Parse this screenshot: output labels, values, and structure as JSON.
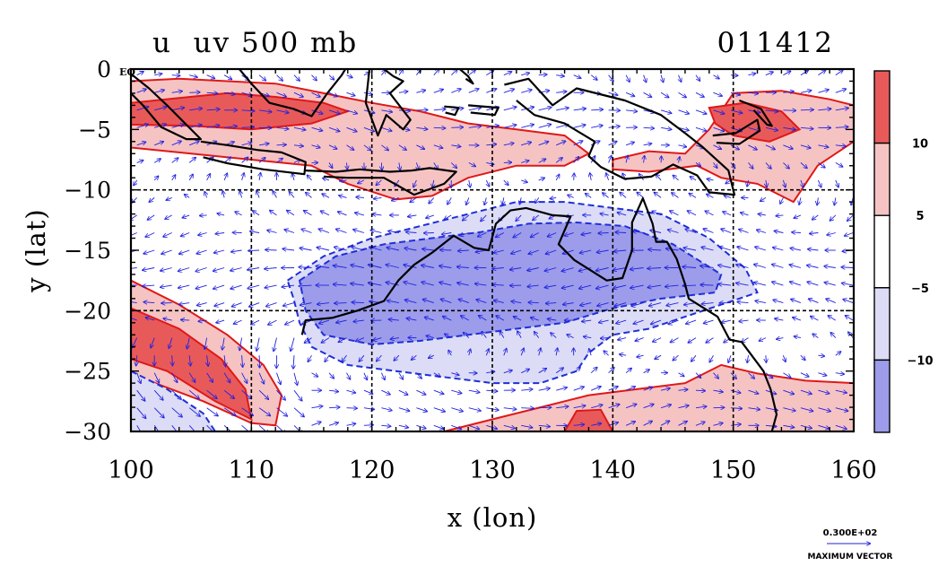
{
  "chart_data": {
    "type": "heatmap",
    "title_left": "u  uv 500 mb",
    "title_right": "011412",
    "xlabel": "x (lon)",
    "ylabel": "y (lat)",
    "xlim": [
      100,
      160
    ],
    "ylim": [
      -30,
      0
    ],
    "x_ticks": [
      100,
      110,
      120,
      130,
      140,
      150,
      160
    ],
    "y_ticks": [
      0,
      -5,
      -10,
      -15,
      -20,
      -25,
      -30
    ],
    "y_tick_labels": [
      "0",
      "−5",
      "−10",
      "−15",
      "−20",
      "−25",
      "−30"
    ],
    "eq_label": "EQ",
    "grid_lon": [
      110,
      120,
      130,
      140,
      150
    ],
    "grid_lat": [
      -10,
      -20
    ],
    "colorbar": {
      "levels": [
        -10,
        -5,
        5,
        10
      ],
      "labels": [
        "10",
        "5",
        "−5",
        "−10"
      ],
      "colors": [
        "#e85a5a",
        "#f6c3c3",
        "#ffffff",
        "#dcdcf6",
        "#9c9cea"
      ]
    },
    "regions": [
      {
        "name": "westerly-north-west",
        "level": 5,
        "lonlat": [
          [
            100,
            -1
          ],
          [
            104,
            -0.8
          ],
          [
            108,
            -1
          ],
          [
            112,
            -1.2
          ],
          [
            116,
            -2
          ],
          [
            120,
            -2.8
          ],
          [
            124,
            -3.5
          ],
          [
            128,
            -4.5
          ],
          [
            132,
            -5
          ],
          [
            136,
            -5.5
          ],
          [
            138,
            -7
          ],
          [
            136,
            -8
          ],
          [
            132,
            -8
          ],
          [
            128,
            -9
          ],
          [
            125,
            -10.5
          ],
          [
            122,
            -10.8
          ],
          [
            118,
            -9.5
          ],
          [
            115,
            -8
          ],
          [
            110,
            -7.5
          ],
          [
            105,
            -7
          ],
          [
            100,
            -6.5
          ]
        ]
      },
      {
        "name": "westerly-north-west-core",
        "level": 10,
        "lonlat": [
          [
            100,
            -2.8
          ],
          [
            104,
            -2.4
          ],
          [
            108,
            -2
          ],
          [
            112,
            -2.3
          ],
          [
            116,
            -2.8
          ],
          [
            118,
            -3.5
          ],
          [
            115,
            -4.5
          ],
          [
            110,
            -5
          ],
          [
            105,
            -4.7
          ],
          [
            100,
            -4.6
          ]
        ]
      },
      {
        "name": "westerly-north-east",
        "level": 5,
        "lonlat": [
          [
            140,
            -7.5
          ],
          [
            143,
            -6.8
          ],
          [
            146,
            -7
          ],
          [
            148,
            -5
          ],
          [
            150,
            -2
          ],
          [
            154,
            -1.8
          ],
          [
            158,
            -2.5
          ],
          [
            160,
            -3
          ],
          [
            160,
            -6
          ],
          [
            157,
            -8
          ],
          [
            155,
            -11
          ],
          [
            152,
            -9.5
          ],
          [
            149,
            -9
          ],
          [
            147,
            -8
          ],
          [
            143,
            -8.5
          ],
          [
            140,
            -8.3
          ]
        ]
      },
      {
        "name": "westerly-north-east-core",
        "level": 10,
        "lonlat": [
          [
            148,
            -3.2
          ],
          [
            151,
            -2.8
          ],
          [
            154,
            -3.5
          ],
          [
            155.5,
            -5
          ],
          [
            153,
            -6
          ],
          [
            150,
            -5.5
          ],
          [
            148.5,
            -4.5
          ]
        ]
      },
      {
        "name": "westerly-south-west",
        "level": 5,
        "lonlat": [
          [
            100,
            -17.5
          ],
          [
            104,
            -19.5
          ],
          [
            108,
            -22
          ],
          [
            111,
            -24.5
          ],
          [
            112.5,
            -27
          ],
          [
            112,
            -29.5
          ],
          [
            110,
            -29.3
          ],
          [
            106,
            -27.5
          ],
          [
            102,
            -26
          ],
          [
            100,
            -25.5
          ]
        ]
      },
      {
        "name": "westerly-south-west-core",
        "level": 10,
        "lonlat": [
          [
            100,
            -19.8
          ],
          [
            104,
            -21.5
          ],
          [
            107.5,
            -24
          ],
          [
            109.5,
            -26.5
          ],
          [
            110,
            -29
          ],
          [
            107,
            -27.5
          ],
          [
            103,
            -25
          ],
          [
            100,
            -24
          ]
        ]
      },
      {
        "name": "westerly-south",
        "level": 5,
        "lonlat": [
          [
            126,
            -30
          ],
          [
            130,
            -29
          ],
          [
            134,
            -28
          ],
          [
            138,
            -27
          ],
          [
            142,
            -26.5
          ],
          [
            146,
            -26
          ],
          [
            149,
            -24.5
          ],
          [
            152,
            -25.2
          ],
          [
            156,
            -25.8
          ],
          [
            160,
            -26
          ],
          [
            160,
            -30
          ]
        ]
      },
      {
        "name": "westerly-south-core",
        "level": 10,
        "lonlat": [
          [
            136,
            -30
          ],
          [
            137,
            -28.3
          ],
          [
            139,
            -28.2
          ],
          [
            140,
            -30
          ]
        ]
      },
      {
        "name": "easterly-central",
        "level": -5,
        "lonlat": [
          [
            113,
            -17.5
          ],
          [
            116,
            -15.5
          ],
          [
            120,
            -14
          ],
          [
            124,
            -13
          ],
          [
            128,
            -12
          ],
          [
            132,
            -11
          ],
          [
            136,
            -11
          ],
          [
            140,
            -11.5
          ],
          [
            144,
            -12
          ],
          [
            148,
            -14
          ],
          [
            151,
            -16.5
          ],
          [
            152,
            -18.5
          ],
          [
            149,
            -19.5
          ],
          [
            146,
            -20.5
          ],
          [
            143,
            -21.5
          ],
          [
            140,
            -22
          ],
          [
            138,
            -23.5
          ],
          [
            137,
            -25
          ],
          [
            134,
            -26
          ],
          [
            130,
            -26
          ],
          [
            126,
            -25.5
          ],
          [
            122,
            -25
          ],
          [
            118,
            -24.5
          ],
          [
            115,
            -23
          ],
          [
            114,
            -21
          ],
          [
            113.5,
            -19
          ]
        ]
      },
      {
        "name": "easterly-central-core",
        "level": -10,
        "lonlat": [
          [
            114,
            -17.5
          ],
          [
            117,
            -15.5
          ],
          [
            121,
            -14.5
          ],
          [
            125,
            -14
          ],
          [
            129,
            -13.5
          ],
          [
            133,
            -12.8
          ],
          [
            137,
            -12.7
          ],
          [
            141,
            -13
          ],
          [
            145,
            -14.5
          ],
          [
            149,
            -17
          ],
          [
            148.5,
            -18.5
          ],
          [
            144,
            -19
          ],
          [
            140,
            -19.8
          ],
          [
            136,
            -21
          ],
          [
            132,
            -21.5
          ],
          [
            128,
            -22
          ],
          [
            124,
            -22.5
          ],
          [
            120,
            -22.8
          ],
          [
            116,
            -22
          ],
          [
            114.5,
            -20
          ]
        ]
      },
      {
        "name": "easterly-south-west",
        "level": -5,
        "lonlat": [
          [
            100,
            -25
          ],
          [
            103,
            -26.5
          ],
          [
            106,
            -28.5
          ],
          [
            107,
            -30
          ],
          [
            100,
            -30
          ]
        ]
      }
    ],
    "coastlines": [
      {
        "name": "australia",
        "lonlat": [
          [
            114.2,
            -22
          ],
          [
            114.5,
            -20.8
          ],
          [
            116.7,
            -20.6
          ],
          [
            118.8,
            -20
          ],
          [
            121,
            -19.2
          ],
          [
            122.2,
            -17.5
          ],
          [
            123.5,
            -16.2
          ],
          [
            125,
            -15.2
          ],
          [
            126.8,
            -13.8
          ],
          [
            128.5,
            -14.8
          ],
          [
            129.7,
            -15
          ],
          [
            130.3,
            -12.8
          ],
          [
            131.5,
            -11.7
          ],
          [
            132.8,
            -11.5
          ],
          [
            135,
            -12.1
          ],
          [
            136.5,
            -12.2
          ],
          [
            135.5,
            -14.5
          ],
          [
            136.8,
            -15.8
          ],
          [
            139.5,
            -17.5
          ],
          [
            140.8,
            -17.3
          ],
          [
            141.6,
            -15
          ],
          [
            141.6,
            -12.7
          ],
          [
            142.5,
            -10.7
          ],
          [
            143.3,
            -12.8
          ],
          [
            143.6,
            -14.3
          ],
          [
            144.5,
            -14.3
          ],
          [
            145.3,
            -15.7
          ],
          [
            146,
            -17.8
          ],
          [
            146.3,
            -19
          ],
          [
            148.7,
            -20.5
          ],
          [
            149.7,
            -22.4
          ],
          [
            150.7,
            -22.6
          ],
          [
            152.5,
            -25
          ],
          [
            153.1,
            -26.5
          ],
          [
            153.6,
            -28.6
          ],
          [
            153.2,
            -30
          ]
        ]
      },
      {
        "name": "new-guinea",
        "lonlat": [
          [
            131,
            -1.3
          ],
          [
            133,
            -0.8
          ],
          [
            135,
            -3
          ],
          [
            137,
            -1.6
          ],
          [
            141,
            -2.6
          ],
          [
            144,
            -3.8
          ],
          [
            146,
            -5.3
          ],
          [
            147.4,
            -6.4
          ],
          [
            149.6,
            -8.4
          ],
          [
            150.1,
            -10.4
          ],
          [
            148,
            -10.2
          ],
          [
            147,
            -8.8
          ],
          [
            145,
            -7.9
          ],
          [
            143.2,
            -8.9
          ],
          [
            141,
            -9.1
          ],
          [
            139,
            -8.1
          ],
          [
            138,
            -7.2
          ],
          [
            138.5,
            -6
          ],
          [
            136,
            -4.5
          ],
          [
            133.5,
            -3.8
          ],
          [
            132,
            -2.6
          ]
        ]
      },
      {
        "name": "sumatra",
        "lonlat": [
          [
            100,
            -0.4
          ],
          [
            101.5,
            -1.6
          ],
          [
            103,
            -3
          ],
          [
            104.5,
            -4.5
          ],
          [
            105.8,
            -5.8
          ],
          [
            104.6,
            -5.8
          ],
          [
            102.5,
            -4.8
          ],
          [
            101,
            -3
          ],
          [
            100,
            -2
          ]
        ]
      },
      {
        "name": "java",
        "lonlat": [
          [
            105.8,
            -6
          ],
          [
            108,
            -6.3
          ],
          [
            110.5,
            -6.7
          ],
          [
            112.5,
            -6.9
          ],
          [
            114.5,
            -7.7
          ],
          [
            114.4,
            -8.7
          ],
          [
            111,
            -8.3
          ],
          [
            108,
            -7.8
          ],
          [
            106,
            -7.3
          ]
        ]
      },
      {
        "name": "borneo",
        "lonlat": [
          [
            109,
            0
          ],
          [
            110,
            -1.2
          ],
          [
            111.5,
            -2.8
          ],
          [
            113.5,
            -3.3
          ],
          [
            115,
            -3.9
          ],
          [
            116.3,
            -2
          ],
          [
            117.5,
            -0.5
          ],
          [
            117.8,
            0
          ]
        ]
      },
      {
        "name": "sulawesi",
        "lonlat": [
          [
            119.8,
            0
          ],
          [
            119.5,
            -2.8
          ],
          [
            120.5,
            -5.5
          ],
          [
            121.2,
            -3.8
          ],
          [
            122.6,
            -5
          ],
          [
            123.2,
            -4.2
          ],
          [
            121.5,
            -2
          ],
          [
            122.6,
            -1
          ],
          [
            121.8,
            -0.6
          ],
          [
            121,
            0
          ]
        ]
      },
      {
        "name": "lesser-sunda",
        "lonlat": [
          [
            114.5,
            -8.4
          ],
          [
            117,
            -8.5
          ],
          [
            119,
            -8.3
          ],
          [
            121.5,
            -8.5
          ],
          [
            123.3,
            -8.4
          ],
          [
            124.8,
            -8.2
          ],
          [
            127,
            -8.5
          ],
          [
            126,
            -9.5
          ],
          [
            123.5,
            -10.4
          ],
          [
            121,
            -9
          ],
          [
            118,
            -9
          ],
          [
            116,
            -8.9
          ]
        ]
      },
      {
        "name": "halmahera",
        "lonlat": [
          [
            127.3,
            0
          ],
          [
            128,
            -0.6
          ],
          [
            128.4,
            -1.2
          ],
          [
            127.8,
            -0.8
          ]
        ]
      },
      {
        "name": "seram",
        "lonlat": [
          [
            128,
            -3
          ],
          [
            130.5,
            -3.2
          ],
          [
            130.2,
            -3.8
          ],
          [
            128.2,
            -3.6
          ]
        ]
      },
      {
        "name": "buru",
        "lonlat": [
          [
            126,
            -3.1
          ],
          [
            127.2,
            -3.2
          ],
          [
            126.9,
            -3.8
          ],
          [
            126.1,
            -3.6
          ]
        ]
      },
      {
        "name": "new-britain",
        "lonlat": [
          [
            148.3,
            -5.5
          ],
          [
            150.2,
            -5.3
          ],
          [
            152,
            -4.2
          ],
          [
            152.2,
            -5.1
          ],
          [
            150.5,
            -6.2
          ],
          [
            148.6,
            -6.1
          ]
        ]
      },
      {
        "name": "new-ireland",
        "lonlat": [
          [
            150.5,
            -2.6
          ],
          [
            152.3,
            -3.3
          ],
          [
            153.2,
            -4.7
          ],
          [
            152.8,
            -4.6
          ],
          [
            151.7,
            -3.4
          ]
        ]
      }
    ],
    "max_vector_label": "0.300E+02",
    "max_vector_caption": "MAXIMUM VECTOR"
  }
}
